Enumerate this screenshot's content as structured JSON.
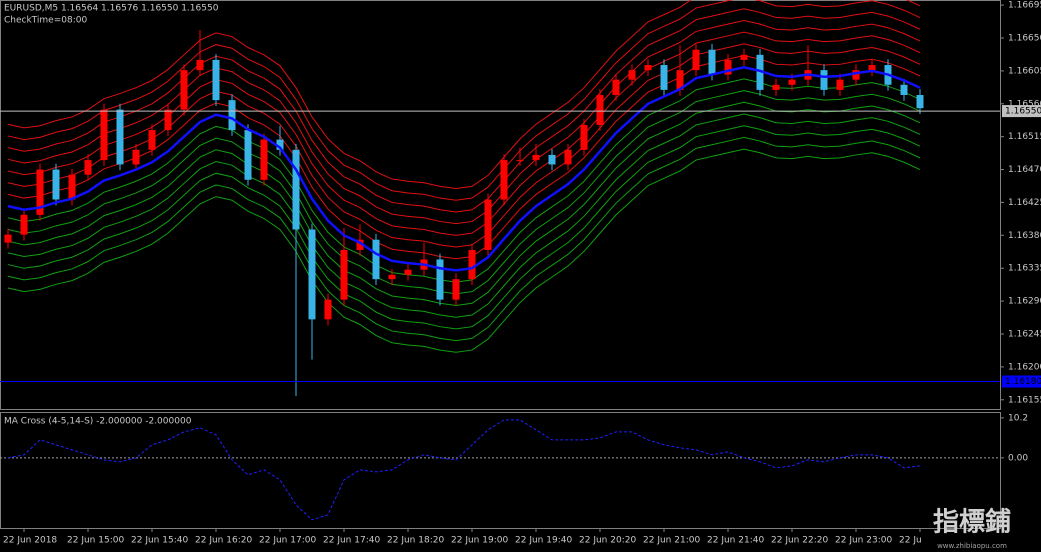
{
  "chart_data": [
    {
      "type": "candlestick",
      "title": "EURUSD,M5  1.16564 1.16576 1.16550 1.16550",
      "subtitle": "CheckTime=08:00",
      "categories": [
        null,
        "22 Jun 2018",
        null,
        null,
        null,
        "22 Jun 15:00",
        null,
        null,
        null,
        "22 Jun 15:40",
        null,
        null,
        null,
        "22 Jun 16:20",
        null,
        null,
        null,
        "22 Jun 17:00",
        null,
        null,
        null,
        "22 Jun 17:40",
        null,
        null,
        null,
        "22 Jun 18:20",
        null,
        null,
        null,
        "22 Jun 19:00",
        null,
        null,
        null,
        "22 Jun 19:40",
        null,
        null,
        null,
        "22 Jun 20:20",
        null,
        null,
        null,
        "22 Jun 21:00",
        null,
        null,
        null,
        "22 Jun 21:40",
        null,
        null,
        null,
        "22 Jun 22:20",
        null,
        null,
        null,
        "22 Jun 23:00",
        null,
        null,
        null,
        "22 Ju"
      ],
      "open": [
        1.1637,
        1.16381,
        1.16408,
        1.1647,
        1.16429,
        1.16463,
        1.16483,
        1.16552,
        1.16477,
        1.16497,
        1.16524,
        1.16552,
        1.16606,
        1.1662,
        1.16565,
        1.16524,
        1.16456,
        1.16511,
        1.16497,
        1.16388,
        1.16265,
        1.16292,
        1.1636,
        1.16374,
        1.1632,
        1.16326,
        1.16333,
        1.16347,
        1.16292,
        1.1632,
        1.1636,
        1.16429,
        1.16483,
        1.16483,
        1.1649,
        1.16477,
        1.16497,
        1.16531,
        1.16572,
        1.16593,
        1.16606,
        1.16613,
        1.16579,
        1.16606,
        1.16634,
        1.166,
        1.1662,
        1.16627,
        1.16579,
        1.16586,
        1.16593,
        1.16606,
        1.16579,
        1.16593,
        1.16606,
        1.16613,
        1.16586,
        1.16572
      ],
      "high": [
        1.16389,
        1.16416,
        1.16478,
        1.16478,
        1.16471,
        1.16491,
        1.1656,
        1.1656,
        1.16505,
        1.16532,
        1.1656,
        1.16614,
        1.16661,
        1.16628,
        1.16573,
        1.16532,
        1.16519,
        1.1653,
        1.16505,
        1.16396,
        1.163,
        1.1639,
        1.16395,
        1.16382,
        1.16334,
        1.16341,
        1.1637,
        1.16355,
        1.16328,
        1.16368,
        1.16437,
        1.16491,
        1.165,
        1.16505,
        1.16498,
        1.16505,
        1.16539,
        1.1658,
        1.16601,
        1.16614,
        1.16621,
        1.16621,
        1.1664,
        1.16642,
        1.16642,
        1.16628,
        1.16635,
        1.16635,
        1.16594,
        1.16601,
        1.1664,
        1.16614,
        1.16601,
        1.16614,
        1.16621,
        1.16621,
        1.16594,
        1.1658
      ],
      "low": [
        1.16362,
        1.16373,
        1.164,
        1.16421,
        1.16421,
        1.16455,
        1.16475,
        1.16469,
        1.16469,
        1.16489,
        1.16516,
        1.16544,
        1.16598,
        1.16557,
        1.16516,
        1.16448,
        1.16448,
        1.16489,
        1.1616,
        1.1621,
        1.16257,
        1.16284,
        1.16352,
        1.16312,
        1.16312,
        1.16318,
        1.16325,
        1.16284,
        1.16284,
        1.16312,
        1.16352,
        1.16421,
        1.16475,
        1.16475,
        1.16469,
        1.16469,
        1.16489,
        1.16523,
        1.16564,
        1.16585,
        1.16598,
        1.16571,
        1.16571,
        1.16598,
        1.16592,
        1.16592,
        1.16612,
        1.16571,
        1.16571,
        1.16578,
        1.16585,
        1.16571,
        1.16571,
        1.16585,
        1.16598,
        1.16578,
        1.16564,
        1.16546
      ],
      "close": [
        1.16381,
        1.16408,
        1.1647,
        1.16429,
        1.16463,
        1.16483,
        1.16552,
        1.16477,
        1.16497,
        1.16524,
        1.16552,
        1.16606,
        1.1662,
        1.16565,
        1.16524,
        1.16456,
        1.16511,
        1.16497,
        1.16388,
        1.16265,
        1.16292,
        1.1636,
        1.16374,
        1.1632,
        1.16326,
        1.16333,
        1.16347,
        1.16292,
        1.1632,
        1.1636,
        1.16429,
        1.16483,
        1.16483,
        1.1649,
        1.16477,
        1.16497,
        1.16531,
        1.16572,
        1.16593,
        1.16606,
        1.16613,
        1.16579,
        1.16606,
        1.16634,
        1.166,
        1.1662,
        1.16627,
        1.16579,
        1.16586,
        1.16593,
        1.16606,
        1.16579,
        1.16593,
        1.16606,
        1.16613,
        1.16586,
        1.16572,
        1.16554
      ],
      "up_color": "#ff0000",
      "down_color": "#3ab4e6",
      "ma": {
        "color": "#1010ff",
        "values": [
          1.1642,
          1.16415,
          1.16418,
          1.16425,
          1.1643,
          1.1644,
          1.16455,
          1.16462,
          1.1647,
          1.1648,
          1.16495,
          1.16515,
          1.16535,
          1.16545,
          1.1654,
          1.16525,
          1.16515,
          1.165,
          1.1647,
          1.1643,
          1.164,
          1.1638,
          1.1637,
          1.16355,
          1.16345,
          1.16342,
          1.1634,
          1.16335,
          1.16332,
          1.16335,
          1.1635,
          1.16375,
          1.164,
          1.1642,
          1.16435,
          1.1645,
          1.1647,
          1.16495,
          1.1652,
          1.1654,
          1.1656,
          1.1657,
          1.1658,
          1.16595,
          1.166,
          1.16605,
          1.1661,
          1.16605,
          1.16598,
          1.16597,
          1.166,
          1.16597,
          1.16598,
          1.16602,
          1.16605,
          1.166,
          1.16592,
          1.16582
        ]
      },
      "band_offsets": [
        0.00016,
        0.00032,
        0.00048,
        0.00064,
        0.0008,
        0.00096,
        0.00112,
        -0.00016,
        -0.00032,
        -0.00048,
        -0.00064,
        -0.0008,
        -0.00096,
        -0.00112
      ],
      "upper_color": "#e01010",
      "lower_color": "#10a010",
      "ylim": [
        1.16141,
        1.16702
      ],
      "yticks": [
        1.16695,
        {
          "value": 1.1665,
          "label": "1.16650"
        },
        1.16605,
        {
          "value": 1.1656,
          "label": "1.16560"
        },
        1.16515,
        {
          "value": 1.1647,
          "label": "1.16470"
        },
        1.16425,
        {
          "value": 1.1638,
          "label": "1.16380"
        },
        1.16335,
        {
          "value": 1.1629,
          "label": "1.16290"
        },
        1.16245,
        {
          "value": 1.162,
          "label": "1.16200"
        },
        1.16155
      ],
      "hlines": [
        {
          "value": 1.1655,
          "label": "1.16550",
          "color": "#c0c0c0"
        },
        {
          "value": 1.1618,
          "label": "1.16180",
          "color": "#0000ff"
        }
      ]
    },
    {
      "type": "line",
      "title": "MA Cross (4-5,14-S)  -2.000000 -2.000000",
      "color": "#2020ff",
      "dashed": true,
      "values": [
        0,
        0.77,
        4.59,
        3.32,
        2.04,
        0.77,
        -0.51,
        -1.02,
        0,
        3.32,
        4.59,
        6.63,
        7.65,
        5.87,
        -0.51,
        -4.34,
        -3.06,
        -5.61,
        -11.99,
        -15.81,
        -14.54,
        -5.61,
        -3.06,
        -3.57,
        -3.06,
        -0.51,
        0.77,
        0,
        -0.51,
        3.32,
        7.14,
        9.69,
        9.69,
        7.14,
        4.59,
        4.59,
        4.59,
        5.1,
        6.63,
        6.63,
        4.59,
        3.32,
        2.55,
        2.04,
        0.77,
        1.53,
        0,
        -1.02,
        -2.55,
        -2.04,
        -0.51,
        -1.02,
        0,
        0.77,
        0.77,
        0,
        -2.55,
        -2.04
      ],
      "ylim": [
        -17.9,
        11.7
      ],
      "yticks": [
        10.2,
        {
          "value": 0,
          "label": "0.00"
        }
      ],
      "zero_line": true
    }
  ],
  "watermark": {
    "text": "指標鋪",
    "url": "www.zhibiaopu.com"
  }
}
